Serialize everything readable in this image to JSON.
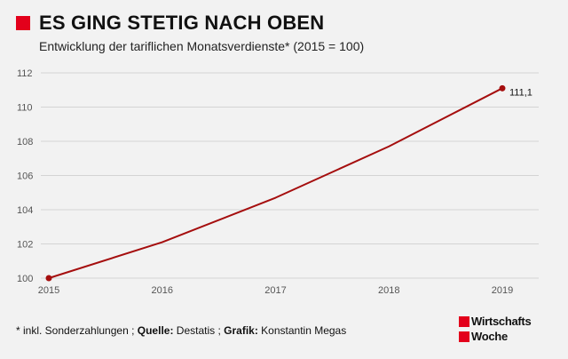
{
  "header": {
    "title": "ES GING STETIG NACH OBEN",
    "subtitle": "Entwicklung der tariflichen Monatsverdienste* (2015 = 100)"
  },
  "footer": {
    "note": "* inkl. Sonderzahlungen ; ",
    "source_label": "Quelle:",
    "source_value": " Destatis ; ",
    "graphic_label": "Grafik:",
    "graphic_value": " Konstantin Megas"
  },
  "logo": {
    "line1": "Wirtschafts",
    "line2": "Woche"
  },
  "colors": {
    "accent": "#e3001b",
    "line": "#a50e0e",
    "grid": "#d4d4d4",
    "tick_text": "#555555"
  },
  "chart_data": {
    "type": "line",
    "title": "ES GING STETIG NACH OBEN",
    "subtitle": "Entwicklung der tariflichen Monatsverdienste* (2015 = 100)",
    "xlabel": "",
    "ylabel": "",
    "x": [
      2015,
      2016,
      2017,
      2018,
      2019
    ],
    "x_tick_labels": [
      "2015",
      "2016",
      "2017",
      "2018",
      "2019"
    ],
    "y_ticks": [
      100,
      102,
      104,
      106,
      108,
      110,
      112
    ],
    "y_tick_labels": [
      "100",
      "102",
      "104",
      "106",
      "108",
      "110",
      "112"
    ],
    "ylim": [
      100,
      112
    ],
    "grid": "horizontal",
    "legend": "none",
    "series": [
      {
        "values": [
          100,
          102.1,
          104.7,
          107.7,
          111.1
        ]
      }
    ],
    "annotations": [
      {
        "x": 2019,
        "y": 111.1,
        "text": "111,1"
      }
    ]
  }
}
